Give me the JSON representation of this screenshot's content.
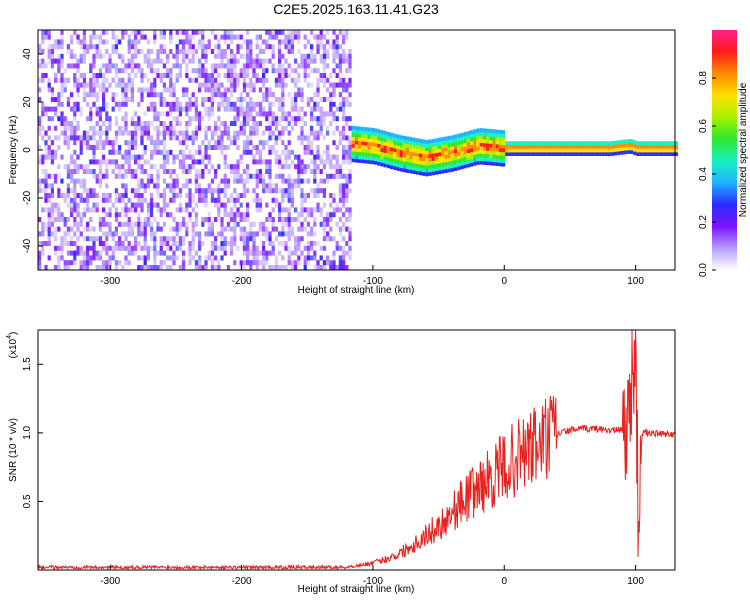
{
  "title": "C2E5.2025.163.11.41.G23",
  "chart_data": [
    {
      "type": "heatmap",
      "xlabel": "Height of straight line (km)",
      "ylabel": "Frequency (Hz)",
      "xlim": [
        -355,
        130
      ],
      "ylim": [
        -50,
        50
      ],
      "x_ticks": [
        -300,
        -200,
        -100,
        0,
        100
      ],
      "y_ticks": [
        -40,
        -20,
        0,
        20,
        40
      ],
      "colorbar": {
        "label": "Normalized spectral amplitude",
        "range": [
          0,
          1
        ],
        "ticks": [
          0.0,
          0.2,
          0.4,
          0.6,
          0.8
        ],
        "colors": [
          "#ffffff",
          "#b69cff",
          "#7a14ff",
          "#2a2aff",
          "#1fb2ff",
          "#18f0c0",
          "#2ee82e",
          "#a8f000",
          "#ffe000",
          "#ff8a00",
          "#ff1a1a",
          "#ff1f8a"
        ]
      },
      "regions": [
        {
          "x": [
            -355,
            -118
          ],
          "description": "scattered noise across all frequencies",
          "amplitude": [
            0.05,
            0.25
          ]
        },
        {
          "x": [
            -118,
            130
          ],
          "description": "signal concentrated near 0 Hz",
          "amplitude": [
            0.3,
            1.0
          ]
        }
      ],
      "ridge": {
        "x": [
          -118,
          -100,
          -80,
          -60,
          -40,
          -20,
          0,
          40,
          80,
          95,
          100,
          130
        ],
        "y": [
          2,
          1,
          -2,
          -4,
          -2,
          1,
          0,
          0,
          0,
          1,
          0,
          0
        ]
      }
    },
    {
      "type": "line",
      "xlabel": "Height of straight line (km)",
      "ylabel": "SNR (10 * v/v)",
      "y_scale_note": "(x10",
      "y_scale_exp": "4",
      "xlim": [
        -355,
        130
      ],
      "ylim": [
        0,
        1.75
      ],
      "x_ticks": [
        -300,
        -200,
        -100,
        0,
        100
      ],
      "y_ticks": [
        0.5,
        1.0,
        1.5
      ],
      "series": [
        {
          "color": "#e8211c",
          "x": [
            -355,
            -300,
            -250,
            -200,
            -150,
            -120,
            -100,
            -90,
            -80,
            -70,
            -60,
            -50,
            -40,
            -30,
            -20,
            -10,
            0,
            10,
            20,
            30,
            40,
            50,
            60,
            70,
            80,
            90,
            95,
            98,
            100,
            102,
            105,
            110,
            120,
            130
          ],
          "y": [
            0.02,
            0.02,
            0.02,
            0.02,
            0.02,
            0.02,
            0.05,
            0.08,
            0.12,
            0.18,
            0.25,
            0.32,
            0.42,
            0.52,
            0.6,
            0.67,
            0.75,
            0.82,
            0.88,
            0.94,
            0.99,
            1.02,
            1.03,
            1.03,
            1.02,
            1.02,
            1.1,
            1.5,
            1.72,
            0.3,
            1.0,
            1.0,
            0.99,
            0.99
          ]
        }
      ]
    }
  ]
}
